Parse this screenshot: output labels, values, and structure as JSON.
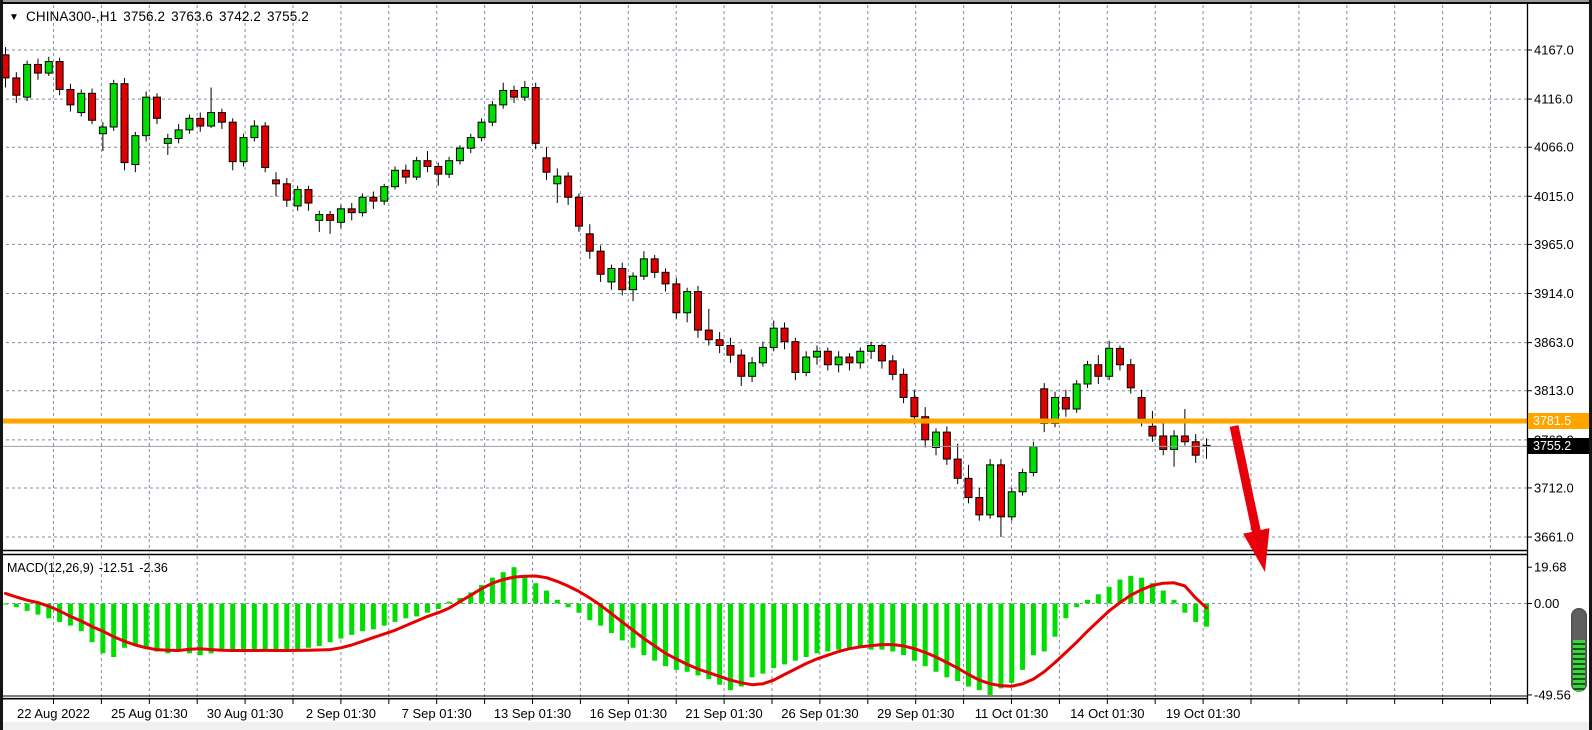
{
  "header": {
    "symbol_period": "CHINA300-,H1",
    "open": "3756.2",
    "high": "3763.6",
    "low": "3742.2",
    "close": "3755.2"
  },
  "indicator_label": {
    "name": "MACD(12,26,9)",
    "main": "-12.51",
    "signal": "-2.36"
  },
  "price_tags": {
    "orange": "3781.5",
    "bid": "3755.2"
  },
  "price_axis": {
    "labels": [
      "4167.0",
      "4116.0",
      "4066.0",
      "4015.0",
      "3965.0",
      "3914.0",
      "3863.0",
      "3813.0",
      "3762.0",
      "3712.0",
      "3661.0"
    ]
  },
  "macd_axis": {
    "labels": [
      "19.68",
      "0.00",
      "-49.56"
    ]
  },
  "colors": {
    "bull": "#00dd00",
    "bear": "#e00000",
    "candle_outline": "#000000",
    "histogram": "#00dd00",
    "signal": "#e60000",
    "grid": "#7c8ea0",
    "hline": "#ffa500",
    "bid_line": "#a0a0a0",
    "arrow": "#e8000a",
    "axis_text": "#000000"
  },
  "chart_data": {
    "type": "candlestick",
    "symbol": "CHINA300-",
    "timeframe": "H1",
    "title": "CHINA300-,H1 3756.2 3763.6 3742.2 3755.2",
    "last_ohlc": {
      "open": 3756.2,
      "high": 3763.6,
      "low": 3742.2,
      "close": 3755.2
    },
    "grid": true,
    "legend_position": "top-left",
    "price_gridlines": [
      4167,
      4116,
      4066,
      4015,
      3965,
      3914,
      3863,
      3813,
      3762,
      3712,
      3661
    ],
    "visible_range": {
      "price_min": 3648,
      "price_max": 4211,
      "macd_min": -52,
      "macd_max": 25
    },
    "time_labels": [
      "22 Aug 2022",
      "25 Aug 01:30",
      "30 Aug 01:30",
      "2 Sep 01:30",
      "7 Sep 01:30",
      "13 Sep 01:30",
      "16 Sep 01:30",
      "21 Sep 01:30",
      "26 Sep 01:30",
      "29 Sep 01:30",
      "11 Oct 01:30",
      "14 Oct 01:30",
      "19 Oct 01:30"
    ],
    "horizontal_line": {
      "price": 3781.5,
      "label": "3781.5"
    },
    "bid_line": {
      "price": 3755.2,
      "label": "3755.2"
    },
    "annotation": {
      "type": "arrow-down",
      "from": [
        1234,
        426
      ],
      "to": [
        1265,
        572
      ]
    },
    "candles": [
      [
        4162,
        4170,
        4128,
        4138
      ],
      [
        4138,
        4144,
        4112,
        4120
      ],
      [
        4118,
        4156,
        4114,
        4152
      ],
      [
        4152,
        4158,
        4136,
        4143
      ],
      [
        4143,
        4160,
        4140,
        4155
      ],
      [
        4155,
        4159,
        4120,
        4126
      ],
      [
        4126,
        4132,
        4103,
        4110
      ],
      [
        4102,
        4126,
        4098,
        4122
      ],
      [
        4122,
        4127,
        4090,
        4094
      ],
      [
        4080,
        4092,
        4062,
        4087
      ],
      [
        4087,
        4136,
        4083,
        4132
      ],
      [
        4132,
        4138,
        4042,
        4050
      ],
      [
        4048,
        4082,
        4040,
        4078
      ],
      [
        4078,
        4124,
        4072,
        4118
      ],
      [
        4118,
        4122,
        4090,
        4096
      ],
      [
        4070,
        4080,
        4058,
        4075
      ],
      [
        4075,
        4090,
        4070,
        4084
      ],
      [
        4084,
        4100,
        4080,
        4096
      ],
      [
        4096,
        4102,
        4082,
        4088
      ],
      [
        4088,
        4128,
        4086,
        4102
      ],
      [
        4102,
        4106,
        4085,
        4092
      ],
      [
        4092,
        4096,
        4042,
        4051
      ],
      [
        4051,
        4080,
        4046,
        4076
      ],
      [
        4076,
        4094,
        4072,
        4088
      ],
      [
        4088,
        4092,
        4040,
        4045
      ],
      [
        4032,
        4040,
        4015,
        4028
      ],
      [
        4028,
        4034,
        4004,
        4011
      ],
      [
        4005,
        4026,
        4000,
        4022
      ],
      [
        4022,
        4026,
        4000,
        4008
      ],
      [
        3990,
        4000,
        3978,
        3996
      ],
      [
        3996,
        4000,
        3976,
        3990
      ],
      [
        3988,
        4006,
        3982,
        4002
      ],
      [
        4002,
        4008,
        3990,
        3998
      ],
      [
        3998,
        4018,
        3994,
        4014
      ],
      [
        4014,
        4020,
        4002,
        4010
      ],
      [
        4010,
        4028,
        4006,
        4025
      ],
      [
        4025,
        4046,
        4022,
        4042
      ],
      [
        4042,
        4048,
        4028,
        4035
      ],
      [
        4035,
        4056,
        4032,
        4052
      ],
      [
        4052,
        4062,
        4040,
        4046
      ],
      [
        4046,
        4050,
        4026,
        4038
      ],
      [
        4038,
        4056,
        4034,
        4052
      ],
      [
        4052,
        4068,
        4048,
        4065
      ],
      [
        4065,
        4080,
        4060,
        4076
      ],
      [
        4076,
        4096,
        4072,
        4092
      ],
      [
        4092,
        4114,
        4088,
        4110
      ],
      [
        4110,
        4133,
        4106,
        4125
      ],
      [
        4125,
        4130,
        4112,
        4118
      ],
      [
        4118,
        4135,
        4114,
        4128
      ],
      [
        4128,
        4133,
        4064,
        4070
      ],
      [
        4055,
        4066,
        4032,
        4040
      ],
      [
        4028,
        4044,
        4008,
        4036
      ],
      [
        4036,
        4040,
        4006,
        4014
      ],
      [
        4014,
        4018,
        3978,
        3984
      ],
      [
        3976,
        3986,
        3950,
        3958
      ],
      [
        3958,
        3964,
        3926,
        3934
      ],
      [
        3926,
        3944,
        3918,
        3940
      ],
      [
        3940,
        3946,
        3912,
        3918
      ],
      [
        3918,
        3936,
        3906,
        3932
      ],
      [
        3932,
        3958,
        3928,
        3950
      ],
      [
        3950,
        3954,
        3930,
        3936
      ],
      [
        3936,
        3940,
        3916,
        3924
      ],
      [
        3924,
        3930,
        3888,
        3894
      ],
      [
        3894,
        3920,
        3884,
        3916
      ],
      [
        3916,
        3922,
        3868,
        3876
      ],
      [
        3876,
        3898,
        3860,
        3866
      ],
      [
        3866,
        3874,
        3852,
        3860
      ],
      [
        3860,
        3868,
        3842,
        3850
      ],
      [
        3850,
        3856,
        3818,
        3828
      ],
      [
        3828,
        3848,
        3822,
        3842
      ],
      [
        3842,
        3864,
        3838,
        3858
      ],
      [
        3858,
        3886,
        3854,
        3878
      ],
      [
        3878,
        3884,
        3856,
        3864
      ],
      [
        3864,
        3868,
        3824,
        3832
      ],
      [
        3832,
        3854,
        3828,
        3848
      ],
      [
        3848,
        3860,
        3840,
        3854
      ],
      [
        3854,
        3858,
        3834,
        3840
      ],
      [
        3840,
        3854,
        3832,
        3848
      ],
      [
        3848,
        3852,
        3834,
        3842
      ],
      [
        3842,
        3858,
        3836,
        3854
      ],
      [
        3854,
        3864,
        3846,
        3860
      ],
      [
        3860,
        3862,
        3836,
        3844
      ],
      [
        3844,
        3850,
        3824,
        3830
      ],
      [
        3830,
        3836,
        3800,
        3806
      ],
      [
        3806,
        3814,
        3778,
        3786
      ],
      [
        3786,
        3796,
        3754,
        3762
      ],
      [
        3754,
        3774,
        3746,
        3770
      ],
      [
        3770,
        3776,
        3736,
        3742
      ],
      [
        3742,
        3758,
        3716,
        3722
      ],
      [
        3722,
        3736,
        3696,
        3702
      ],
      [
        3702,
        3712,
        3678,
        3684
      ],
      [
        3684,
        3742,
        3680,
        3736
      ],
      [
        3736,
        3742,
        3661,
        3682
      ],
      [
        3682,
        3712,
        3678,
        3708
      ],
      [
        3708,
        3732,
        3704,
        3728
      ],
      [
        3728,
        3760,
        3724,
        3755
      ],
      [
        3815,
        3821,
        3770,
        3779
      ],
      [
        3779,
        3812,
        3775,
        3806
      ],
      [
        3806,
        3814,
        3786,
        3794
      ],
      [
        3794,
        3824,
        3790,
        3820
      ],
      [
        3820,
        3844,
        3816,
        3840
      ],
      [
        3840,
        3850,
        3820,
        3828
      ],
      [
        3828,
        3865,
        3824,
        3857
      ],
      [
        3857,
        3860,
        3834,
        3840
      ],
      [
        3840,
        3846,
        3810,
        3816
      ],
      [
        3806,
        3814,
        3776,
        3784
      ],
      [
        3776,
        3792,
        3760,
        3766
      ],
      [
        3766,
        3782,
        3746,
        3752
      ],
      [
        3752,
        3772,
        3734,
        3766
      ],
      [
        3766,
        3794,
        3756,
        3760
      ],
      [
        3760,
        3768,
        3738,
        3746
      ],
      [
        3756.2,
        3763.6,
        3742.2,
        3755.2
      ]
    ],
    "indicator": {
      "name": "MACD",
      "params": [
        12,
        26,
        9
      ],
      "values": {
        "main": -12.51,
        "signal": -2.36
      },
      "axis_values": [
        19.68,
        0,
        -49.56
      ],
      "histogram": [
        -0.5,
        -2,
        -4,
        -6,
        -8,
        -10,
        -12,
        -15,
        -21,
        -27,
        -29,
        -24,
        -22,
        -24,
        -26,
        -27,
        -26,
        -27,
        -28,
        -27,
        -26,
        -25,
        -26,
        -25,
        -26,
        -25,
        -26,
        -25,
        -24,
        -23,
        -21,
        -19,
        -17,
        -15,
        -14,
        -12,
        -10,
        -8,
        -7,
        -5,
        -3,
        1,
        3,
        6,
        10,
        14,
        17,
        19.68,
        15,
        11,
        7,
        2,
        -2,
        -5,
        -9,
        -12,
        -16,
        -20,
        -24,
        -28,
        -31,
        -34,
        -36,
        -37,
        -39,
        -41,
        -44,
        -47,
        -45,
        -40,
        -38,
        -35,
        -33,
        -31,
        -29,
        -27,
        -26,
        -25,
        -24,
        -24,
        -25,
        -25,
        -26,
        -28,
        -31,
        -34,
        -37,
        -40,
        -42,
        -45,
        -47,
        -49.56,
        -46,
        -43,
        -36,
        -28,
        -26,
        -18,
        -8,
        -2,
        2,
        5,
        9,
        13,
        15,
        14,
        11,
        7,
        2,
        -5,
        -10,
        -12.51
      ],
      "signal_line": [
        5.5,
        3.5,
        1.8,
        0.5,
        -1.5,
        -4,
        -7,
        -9.5,
        -12.5,
        -15,
        -18,
        -20.5,
        -22.5,
        -24,
        -25,
        -25.3,
        -25.5,
        -24.8,
        -24.5,
        -25,
        -25.3,
        -25.5,
        -25.5,
        -25.5,
        -25.4,
        -25.5,
        -25.5,
        -25.4,
        -25.3,
        -25.2,
        -25,
        -24,
        -22.5,
        -20.5,
        -18.5,
        -16.5,
        -14.5,
        -12,
        -9.5,
        -7,
        -5,
        -2.5,
        1,
        4.5,
        8,
        11,
        13,
        14.3,
        14.8,
        14.9,
        14,
        12,
        9.5,
        6.5,
        3,
        -1,
        -5.5,
        -10,
        -14.5,
        -19,
        -23,
        -27,
        -30,
        -33,
        -35.5,
        -37.5,
        -39.5,
        -41.5,
        -43,
        -44,
        -43.5,
        -41.5,
        -38.5,
        -35.5,
        -32.5,
        -30,
        -28,
        -26,
        -24.5,
        -23.5,
        -22.8,
        -22.3,
        -22.3,
        -23,
        -24.5,
        -26.5,
        -29,
        -32,
        -35,
        -38.5,
        -41.5,
        -43.5,
        -44.5,
        -44.8,
        -43.5,
        -41,
        -37,
        -32,
        -26.5,
        -21,
        -15,
        -9.5,
        -4,
        0.5,
        4.5,
        7.5,
        9.8,
        11,
        11.2,
        9.5,
        3,
        -2.36
      ]
    }
  }
}
